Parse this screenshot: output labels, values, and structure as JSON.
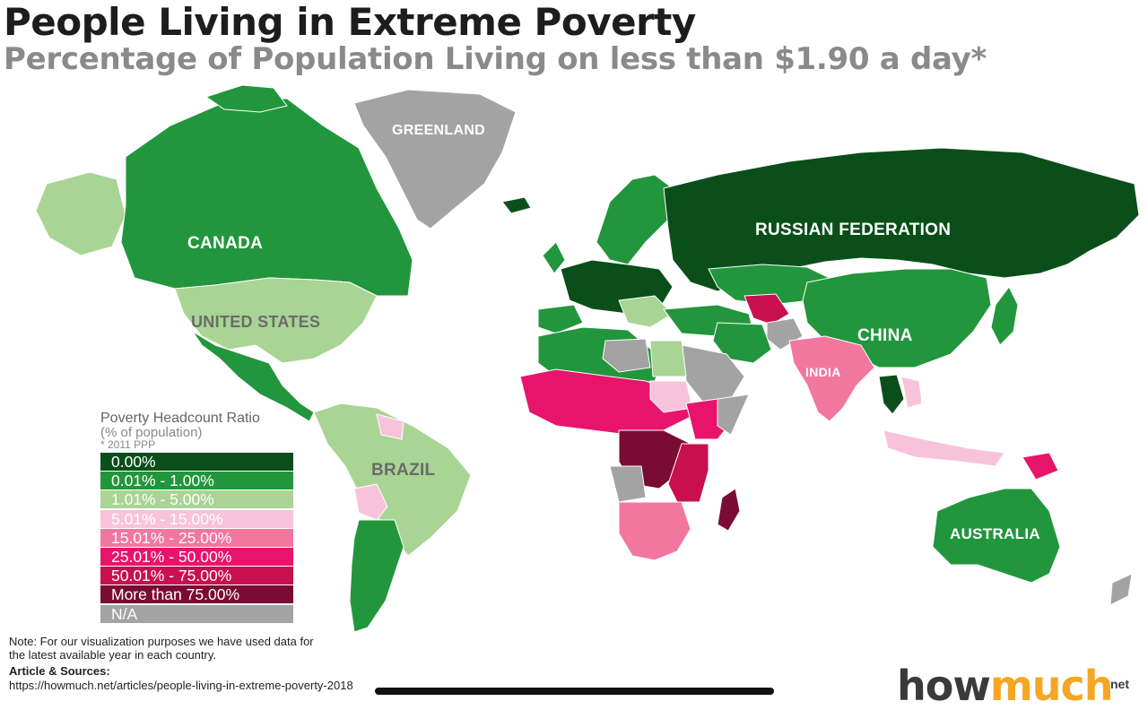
{
  "title": "People Living in Extreme Poverty",
  "subtitle": "Percentage of Population Living on less than $1.90 a day*",
  "colors": {
    "c0": "#0a4f1a",
    "c1": "#22963c",
    "c2": "#a8d494",
    "c3": "#f8c3da",
    "c4": "#f2779f",
    "c5": "#e8146c",
    "c6": "#c8104e",
    "c7": "#7a0c33",
    "na": "#a3a3a3",
    "ocean": "#ffffff",
    "border": "#ffffff"
  },
  "labels": {
    "greenland": "GREENLAND",
    "canada": "CANADA",
    "united_states": "UNITED STATES",
    "russia": "RUSSIAN FEDERATION",
    "china": "CHINA",
    "india": "INDIA",
    "brazil": "BRAZIL",
    "australia": "AUSTRALIA"
  },
  "legend": {
    "title": "Poverty Headcount Ratio",
    "subtitle": "(% of population)",
    "note": "* 2011 PPP",
    "items": [
      {
        "label": "0.00%",
        "color": "#0a4f1a"
      },
      {
        "label": "0.01% - 1.00%",
        "color": "#22963c"
      },
      {
        "label": "1.01% - 5.00%",
        "color": "#a8d494"
      },
      {
        "label": "5.01% - 15.00%",
        "color": "#f8c3da"
      },
      {
        "label": "15.01% - 25.00%",
        "color": "#f2779f"
      },
      {
        "label": "25.01% - 50.00%",
        "color": "#e8146c"
      },
      {
        "label": "50.01% - 75.00%",
        "color": "#c8104e"
      },
      {
        "label": "More than 75.00%",
        "color": "#7a0c33"
      },
      {
        "label": "N/A",
        "color": "#a3a3a3"
      }
    ]
  },
  "footer": {
    "note": "Note: For our visualization purposes we have used data for the latest available year in each country.",
    "sources_heading": "Article & Sources:",
    "sources_url": "https://howmuch.net/articles/people-living-in-extreme-poverty-2018",
    "logo_part1": "how",
    "logo_part2": "much",
    "logo_suffix": "net"
  }
}
